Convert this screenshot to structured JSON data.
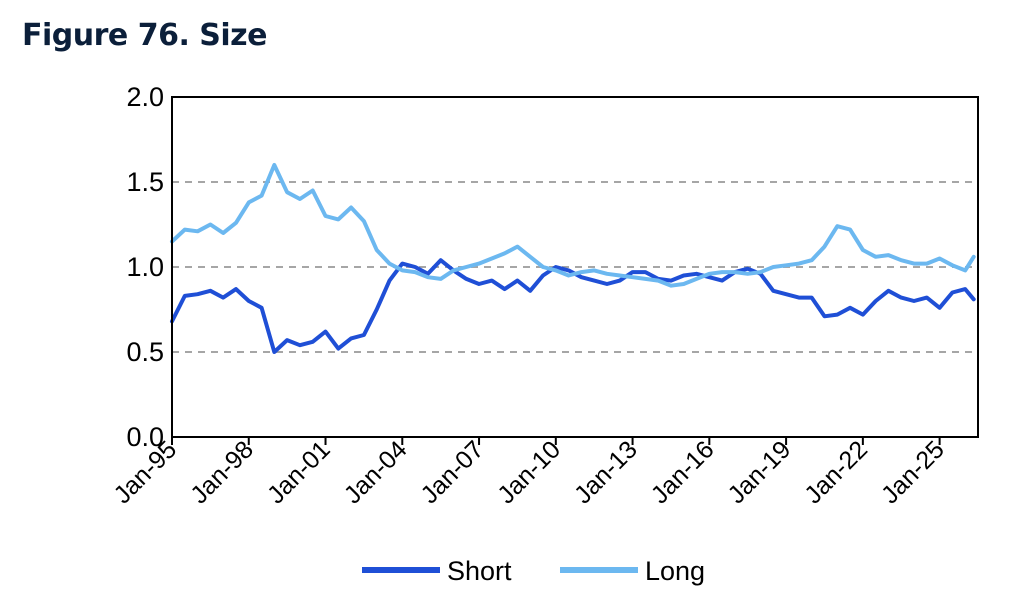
{
  "title": "Figure 76. Size",
  "chart_data": {
    "type": "line",
    "title": "Figure 76. Size",
    "xlabel": "",
    "ylabel": "",
    "ylim": [
      0.0,
      2.0
    ],
    "yticks": [
      "0.0",
      "0.5",
      "1.0",
      "1.5",
      "2.0"
    ],
    "xticks": [
      "Jan-95",
      "Jan-98",
      "Jan-01",
      "Jan-04",
      "Jan-07",
      "Jan-10",
      "Jan-13",
      "Jan-16",
      "Jan-19",
      "Jan-22",
      "Jan-25"
    ],
    "x_range": [
      "1995-01",
      "2026-07"
    ],
    "grid": "horizontal dashed",
    "legend": "bottom-center",
    "x": [
      "1995-01",
      "1995-07",
      "1996-01",
      "1996-07",
      "1997-01",
      "1997-07",
      "1998-01",
      "1998-07",
      "1999-01",
      "1999-07",
      "2000-01",
      "2000-07",
      "2001-01",
      "2001-07",
      "2002-01",
      "2002-07",
      "2003-01",
      "2003-07",
      "2004-01",
      "2004-07",
      "2005-01",
      "2005-07",
      "2006-01",
      "2006-07",
      "2007-01",
      "2007-07",
      "2008-01",
      "2008-07",
      "2009-01",
      "2009-07",
      "2010-01",
      "2010-07",
      "2011-01",
      "2011-07",
      "2012-01",
      "2012-07",
      "2013-01",
      "2013-07",
      "2014-01",
      "2014-07",
      "2015-01",
      "2015-07",
      "2016-01",
      "2016-07",
      "2017-01",
      "2017-07",
      "2018-01",
      "2018-07",
      "2019-01",
      "2019-07",
      "2020-01",
      "2020-07",
      "2021-01",
      "2021-07",
      "2022-01",
      "2022-07",
      "2023-01",
      "2023-07",
      "2024-01",
      "2024-07",
      "2025-01",
      "2025-07",
      "2026-01",
      "2026-05"
    ],
    "series": [
      {
        "name": "Short",
        "color": "#1f4fd6",
        "values": [
          0.68,
          0.83,
          0.84,
          0.86,
          0.82,
          0.87,
          0.8,
          0.76,
          0.5,
          0.57,
          0.54,
          0.56,
          0.62,
          0.52,
          0.58,
          0.6,
          0.75,
          0.92,
          1.02,
          1.0,
          0.96,
          1.04,
          0.98,
          0.93,
          0.9,
          0.92,
          0.87,
          0.92,
          0.86,
          0.95,
          1.0,
          0.98,
          0.94,
          0.92,
          0.9,
          0.92,
          0.97,
          0.97,
          0.93,
          0.92,
          0.95,
          0.96,
          0.94,
          0.92,
          0.97,
          0.99,
          0.96,
          0.86,
          0.84,
          0.82,
          0.82,
          0.71,
          0.72,
          0.76,
          0.72,
          0.8,
          0.86,
          0.82,
          0.8,
          0.82,
          0.76,
          0.85,
          0.87,
          0.81
        ]
      },
      {
        "name": "Long",
        "color": "#6cb8f0",
        "values": [
          1.15,
          1.22,
          1.21,
          1.25,
          1.2,
          1.26,
          1.38,
          1.42,
          1.6,
          1.44,
          1.4,
          1.45,
          1.3,
          1.28,
          1.35,
          1.27,
          1.1,
          1.02,
          0.98,
          0.97,
          0.94,
          0.93,
          0.98,
          1.0,
          1.02,
          1.05,
          1.08,
          1.12,
          1.06,
          1.0,
          0.98,
          0.95,
          0.97,
          0.98,
          0.96,
          0.95,
          0.94,
          0.93,
          0.92,
          0.89,
          0.9,
          0.93,
          0.96,
          0.97,
          0.97,
          0.96,
          0.97,
          1.0,
          1.01,
          1.02,
          1.04,
          1.12,
          1.24,
          1.22,
          1.1,
          1.06,
          1.07,
          1.04,
          1.02,
          1.02,
          1.05,
          1.01,
          0.98,
          1.06
        ]
      }
    ]
  }
}
